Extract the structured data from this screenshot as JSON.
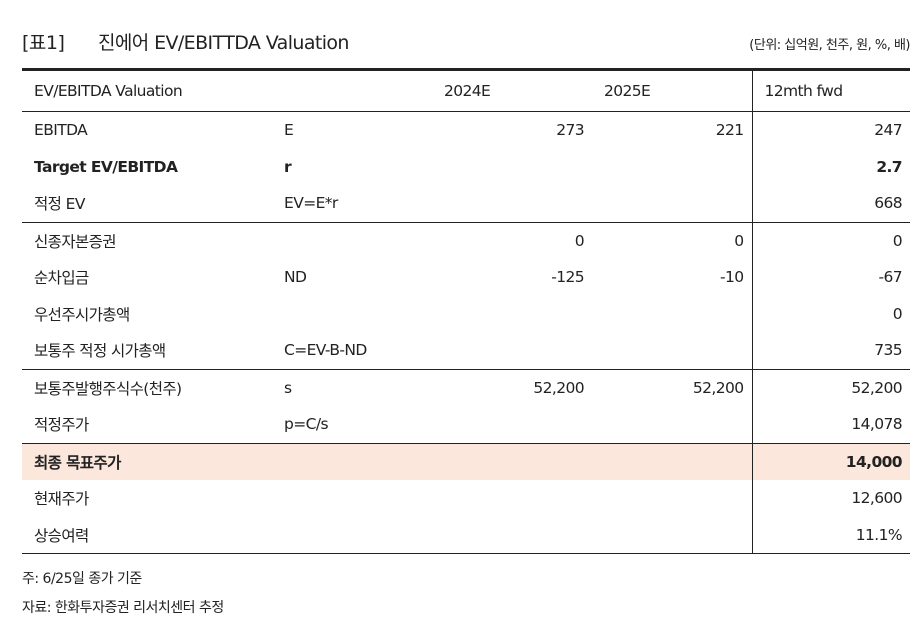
{
  "title": {
    "tag": "[표1]",
    "text": "진에어 EV/EBITTDA Valuation",
    "unit": "(단위: 십억원, 천주, 원, %, 배)"
  },
  "table": {
    "headers": [
      "EV/EBITDA Valuation",
      "",
      "2024E",
      "2025E",
      "12mth fwd"
    ],
    "rows": [
      {
        "label": "EBITDA",
        "formula": "E",
        "y2024": "273",
        "y2025": "221",
        "fwd": "247",
        "sep": false,
        "bold": false,
        "hl": false
      },
      {
        "label": "Target EV/EBITDA",
        "formula": "r",
        "y2024": "",
        "y2025": "",
        "fwd": "2.7",
        "sep": false,
        "bold": true,
        "hl": false
      },
      {
        "label": "적정 EV",
        "formula": "EV=E*r",
        "y2024": "",
        "y2025": "",
        "fwd": "668",
        "sep": false,
        "bold": false,
        "hl": false
      },
      {
        "label": "신종자본증권",
        "formula": "",
        "y2024": "0",
        "y2025": "0",
        "fwd": "0",
        "sep": true,
        "bold": false,
        "hl": false
      },
      {
        "label": "순차입금",
        "formula": "ND",
        "y2024": "-125",
        "y2025": "-10",
        "fwd": "-67",
        "sep": false,
        "bold": false,
        "hl": false
      },
      {
        "label": "우선주시가총액",
        "formula": "",
        "y2024": "",
        "y2025": "",
        "fwd": "0",
        "sep": false,
        "bold": false,
        "hl": false
      },
      {
        "label": "보통주 적정 시가총액",
        "formula": "C=EV-B-ND",
        "y2024": "",
        "y2025": "",
        "fwd": "735",
        "sep": false,
        "bold": false,
        "hl": false
      },
      {
        "label": "보통주발행주식수(천주)",
        "formula": "s",
        "y2024": "52,200",
        "y2025": "52,200",
        "fwd": "52,200",
        "sep": true,
        "bold": false,
        "hl": false
      },
      {
        "label": "적정주가",
        "formula": "p=C/s",
        "y2024": "",
        "y2025": "",
        "fwd": "14,078",
        "sep": false,
        "bold": false,
        "hl": false
      },
      {
        "label": "최종 목표주가",
        "formula": "",
        "y2024": "",
        "y2025": "",
        "fwd": "14,000",
        "sep": true,
        "bold": true,
        "hl": true
      },
      {
        "label": "현재주가",
        "formula": "",
        "y2024": "",
        "y2025": "",
        "fwd": "12,600",
        "sep": false,
        "bold": false,
        "hl": false
      },
      {
        "label": "상승여력",
        "formula": "",
        "y2024": "",
        "y2025": "",
        "fwd": "11.1%",
        "sep": false,
        "bold": false,
        "hl": false
      }
    ]
  },
  "notes": {
    "note1": "주: 6/25일 종가 기준",
    "note2": "자료: 한화투자증권 리서치센터 추정"
  },
  "colors": {
    "highlight_row": "#fbe7dc",
    "rule": "#222222"
  }
}
